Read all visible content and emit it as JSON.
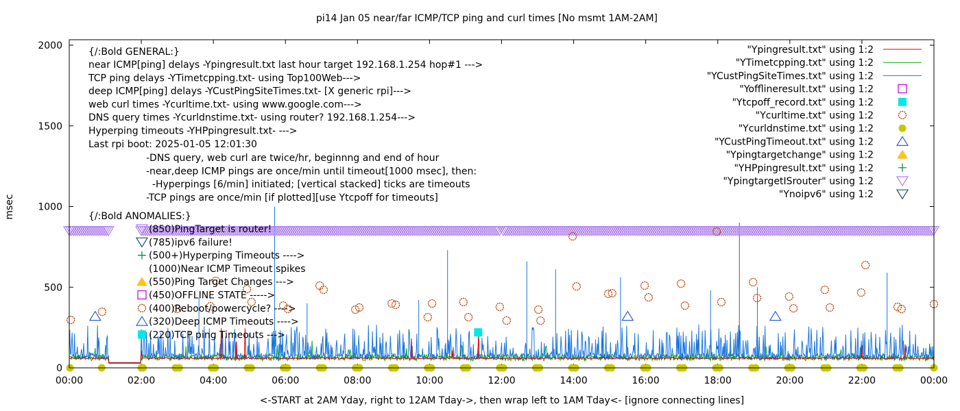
{
  "chart_data": {
    "type": "scatter",
    "title": "pi14 Jan 05  near/far ICMP/TCP ping and curl times [No msmt 1AM-2AM]",
    "xlabel": "<-START at 2AM Yday, right to 12AM Tday->, then wrap left to 1AM Tday<- [ignore connecting lines]",
    "ylabel": "msec",
    "xlim": [
      0,
      24
    ],
    "ylim": [
      0,
      2000
    ],
    "x_ticks": [
      "00:00",
      "02:00",
      "04:00",
      "06:00",
      "08:00",
      "10:00",
      "12:00",
      "14:00",
      "16:00",
      "18:00",
      "20:00",
      "22:00",
      "00:00"
    ],
    "y_ticks": [
      0,
      500,
      1000,
      1500,
      2000
    ],
    "legend_position": "top-right",
    "legend": [
      {
        "label": "\"Ypingresult.txt\" using 1:2",
        "style": "line",
        "color": "#e00000"
      },
      {
        "label": "\"YTimetcpping.txt\" using 1:2",
        "style": "line",
        "color": "#00b000"
      },
      {
        "label": "\"YCustPingSiteTimes.txt\" using 1:2",
        "style": "line",
        "color": "#1a75e0"
      },
      {
        "label": "\"Yofflineresult.txt\" using 1:2",
        "style": "open-square",
        "color": "#c000e0"
      },
      {
        "label": "\"Ytcpoff_record.txt\" using 1:2",
        "style": "filled-square",
        "color": "#00e8e8"
      },
      {
        "label": "\"Ycurltime.txt\" using 1:2",
        "style": "open-circle",
        "color": "#c04000"
      },
      {
        "label": "\"Ycurldnstime.txt\" using 1:2",
        "style": "filled-circle",
        "color": "#c8c800"
      },
      {
        "label": "\"YCustPingTimeout.txt\" using 1:2",
        "style": "open-triangle",
        "color": "#3060d8"
      },
      {
        "label": "\"Ypingtargetchange\" using 1:2",
        "style": "filled-triangle",
        "color": "#ffc020"
      },
      {
        "label": "\"YHPpingresult.txt\" using 1:2",
        "style": "plus",
        "color": "#008040"
      },
      {
        "label": "\"YpingtargetISrouter\" using 1:2",
        "style": "open-down-triangle",
        "color": "#b080f0"
      },
      {
        "label": "\"Ynoipv6\" using 1:2",
        "style": "open-down-triangle",
        "color": "#205070"
      }
    ],
    "annotations": {
      "general_header": "{/:Bold GENERAL:}",
      "general_lines": [
        "near ICMP[ping] delays -Ypingresult.txt last hour target 192.168.1.254 hop#1 --->",
        "TCP ping delays -YTimetcpping.txt- using Top100Web--->",
        "deep ICMP[ping] delays -YCustPingSiteTimes.txt- [X generic rpi]--->",
        "web curl times -Ycurltime.txt- using www.google.com--->",
        "DNS query times -Ycurldnstime.txt- using router? 192.168.1.254--->",
        "Hyperping timeouts -YHPpingresult.txt- --->",
        "Last rpi boot: 2025-01-05 12:01:30"
      ],
      "notes": [
        "-DNS query, web curl are twice/hr, beginnng and end of hour",
        "-near,deep ICMP pings are once/min until timeout[1000 msec], then:",
        "  -Hyperpings [6/min] initiated; [vertical stacked] ticks are timeouts",
        "-TCP pings are once/min [if plotted][use Ytcpoff for timeouts]"
      ],
      "anomalies_header": "{/:Bold ANOMALIES:}",
      "anomalies": [
        {
          "text": "(850)PingTarget is router!",
          "symbol": "open-down-triangle",
          "color": "#b080f0"
        },
        {
          "text": "(785)ipv6 failure!",
          "symbol": "open-down-triangle",
          "color": "#205070"
        },
        {
          "text": "(500+)Hyperping Timeouts ---->",
          "symbol": "plus",
          "color": "#008040"
        },
        {
          "text": "(1000)Near ICMP Timeout spikes",
          "symbol": "none",
          "color": "#000000"
        },
        {
          "text": "(550)Ping Target Changes --->",
          "symbol": "filled-triangle",
          "color": "#ffc020"
        },
        {
          "text": "(450)OFFLINE STATE ----->",
          "symbol": "open-square",
          "color": "#c000e0"
        },
        {
          "text": "(400)Reboot/powercycle? ---->",
          "symbol": "open-circle",
          "color": "#c04000"
        },
        {
          "text": "(320)Deep ICMP Timeouts ---->",
          "symbol": "open-triangle",
          "color": "#3060d8"
        },
        {
          "text": "(220)TCP ping Timeouts --->",
          "symbol": "filled-square",
          "color": "#00e8e8"
        }
      ]
    },
    "series": {
      "curl_times": [
        [
          0.04,
          297
        ],
        [
          0.91,
          348
        ],
        [
          2.99,
          365
        ],
        [
          3.92,
          382
        ],
        [
          4.07,
          539
        ],
        [
          4.93,
          488
        ],
        [
          5.06,
          408
        ],
        [
          5.94,
          386
        ],
        [
          6.07,
          365
        ],
        [
          6.95,
          510
        ],
        [
          7.06,
          484
        ],
        [
          7.94,
          361
        ],
        [
          8.05,
          374
        ],
        [
          8.95,
          399
        ],
        [
          9.06,
          391
        ],
        [
          9.95,
          314
        ],
        [
          10.07,
          399
        ],
        [
          10.94,
          408
        ],
        [
          11.08,
          314
        ],
        [
          11.95,
          378
        ],
        [
          12.14,
          293
        ],
        [
          13.02,
          361
        ],
        [
          13.08,
          293
        ],
        [
          13.97,
          815
        ],
        [
          14.08,
          505
        ],
        [
          14.96,
          459
        ],
        [
          15.07,
          463
        ],
        [
          15.97,
          510
        ],
        [
          16.08,
          437
        ],
        [
          16.98,
          522
        ],
        [
          17.09,
          386
        ],
        [
          17.97,
          845
        ],
        [
          18.1,
          408
        ],
        [
          18.98,
          531
        ],
        [
          19.09,
          433
        ],
        [
          19.98,
          442
        ],
        [
          20.1,
          369
        ],
        [
          20.97,
          484
        ],
        [
          21.11,
          374
        ],
        [
          21.98,
          467
        ],
        [
          22.1,
          637
        ],
        [
          22.99,
          378
        ],
        [
          23.1,
          365
        ],
        [
          24.0,
          395
        ]
      ],
      "dns_times_hours": [
        0.02,
        0.9,
        2.0,
        2.05,
        2.95,
        3.05,
        3.95,
        4.05,
        4.95,
        5.05,
        5.95,
        6.05,
        6.95,
        7.05,
        7.95,
        8.05,
        8.95,
        9.05,
        9.95,
        10.05,
        10.95,
        11.05,
        11.95,
        12.05,
        12.95,
        13.05,
        13.95,
        14.05,
        14.95,
        15.05,
        15.95,
        16.05,
        16.95,
        17.05,
        17.95,
        18.05,
        18.95,
        19.05,
        19.95,
        20.05,
        20.95,
        21.05,
        21.95,
        22.05,
        22.95,
        23.05,
        24.0
      ],
      "deep_icmp_timeouts": [
        [
          0.72,
          320
        ],
        [
          15.5,
          320
        ],
        [
          19.6,
          320
        ]
      ],
      "tcp_ping_timeouts": [
        [
          11.35,
          220
        ]
      ],
      "ping_target_is_router_ranges": [
        [
          0.0,
          1.1
        ],
        [
          2.0,
          11.95
        ],
        [
          12.05,
          24.0
        ]
      ],
      "ping_target_is_router_value": 850,
      "notable_spikes": [
        [
          5.7,
          1000
        ],
        [
          10.5,
          730
        ],
        [
          13.5,
          610
        ],
        [
          12.7,
          660
        ],
        [
          17.8,
          480
        ],
        [
          18.6,
          900
        ],
        [
          22.7,
          590
        ],
        [
          15.3,
          560
        ],
        [
          19.1,
          500
        ],
        [
          9.7,
          420
        ],
        [
          3.6,
          430
        ],
        [
          6.6,
          400
        ]
      ]
    }
  }
}
